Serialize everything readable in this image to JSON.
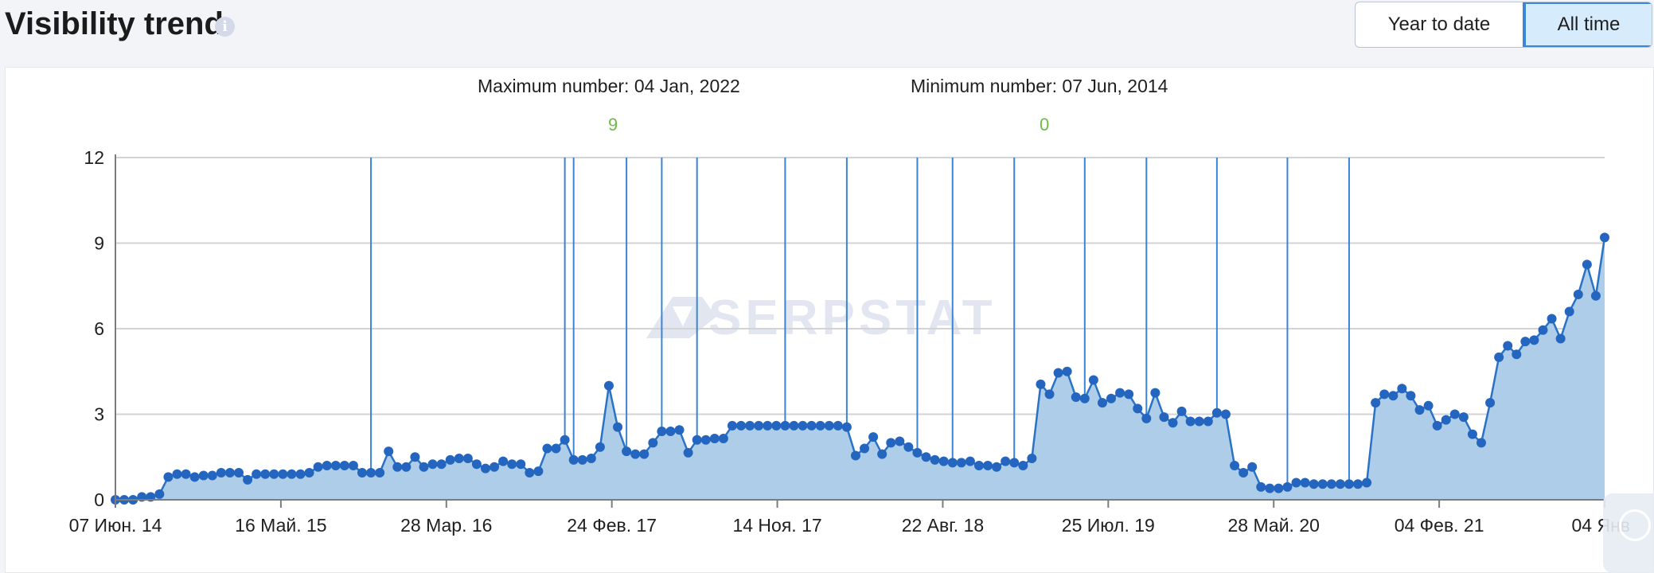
{
  "header": {
    "title": "Visibility trend",
    "info_icon": "info-icon",
    "toggle": {
      "year_to_date": "Year to date",
      "all_time": "All time",
      "active": "All time"
    }
  },
  "stats": {
    "max_label": "Maximum number: 04 Jan, 2022",
    "max_value": "9",
    "min_label": "Minimum number: 07 Jun, 2014",
    "min_value": "0"
  },
  "colors": {
    "line": "#2a72c6",
    "fill": "#aecde9",
    "marker": "#2466bf",
    "event_line": "#3a84d5",
    "grid": "#d3d3d3",
    "highlight_value": "#6dbb45"
  },
  "watermark": "SERPSTAT",
  "chart_data": {
    "type": "area",
    "ylim": [
      0,
      12
    ],
    "y_ticks": [
      0,
      3,
      6,
      9,
      12
    ],
    "x_ticks": [
      "07 Июн. 14",
      "16 Май. 15",
      "28 Мар. 16",
      "24 Фев. 17",
      "14 Ноя. 17",
      "22 Авг. 18",
      "25 Июл. 19",
      "28 Май. 20",
      "04 Фев. 21",
      "04 Янв"
    ],
    "grid": true,
    "markers": true,
    "event_line_count": 16,
    "series": [
      {
        "values": [
          0,
          0,
          0,
          0.1,
          0.1,
          0.2,
          0.8,
          0.9,
          0.9,
          0.8,
          0.85,
          0.85,
          0.95,
          0.95,
          0.95,
          0.7,
          0.9,
          0.9,
          0.9,
          0.9,
          0.9,
          0.9,
          0.95,
          1.15,
          1.2,
          1.2,
          1.2,
          1.2,
          0.95,
          0.95,
          0.95,
          1.7,
          1.15,
          1.15,
          1.5,
          1.15,
          1.25,
          1.25,
          1.4,
          1.45,
          1.45,
          1.25,
          1.1,
          1.15,
          1.35,
          1.25,
          1.25,
          0.95,
          1.0,
          1.8,
          1.8,
          2.1,
          1.4,
          1.4,
          1.45,
          1.85,
          4.0,
          2.55,
          1.7,
          1.6,
          1.6,
          2.0,
          2.4,
          2.4,
          2.45,
          1.65,
          2.1,
          2.1,
          2.15,
          2.15,
          2.6,
          2.6,
          2.6,
          2.6,
          2.6,
          2.6,
          2.6,
          2.6,
          2.6,
          2.6,
          2.6,
          2.6,
          2.6,
          2.55,
          1.55,
          1.8,
          2.2,
          1.6,
          2.0,
          2.05,
          1.85,
          1.65,
          1.5,
          1.4,
          1.35,
          1.3,
          1.3,
          1.35,
          1.2,
          1.2,
          1.15,
          1.35,
          1.3,
          1.2,
          1.45,
          4.05,
          3.7,
          4.45,
          4.5,
          3.6,
          3.55,
          4.2,
          3.4,
          3.55,
          3.75,
          3.7,
          3.2,
          2.85,
          3.75,
          2.9,
          2.7,
          3.1,
          2.75,
          2.75,
          2.75,
          3.05,
          3.0,
          1.2,
          0.95,
          1.15,
          0.45,
          0.4,
          0.4,
          0.45,
          0.6,
          0.6,
          0.55,
          0.55,
          0.55,
          0.55,
          0.55,
          0.55,
          0.6,
          3.4,
          3.7,
          3.65,
          3.9,
          3.65,
          3.15,
          3.3,
          2.6,
          2.8,
          3.0,
          2.9,
          2.3,
          2.0,
          3.4,
          5.0,
          5.4,
          5.1,
          5.55,
          5.6,
          5.95,
          6.35,
          5.65,
          6.6,
          7.2,
          8.25,
          7.15,
          9.2
        ]
      }
    ]
  }
}
